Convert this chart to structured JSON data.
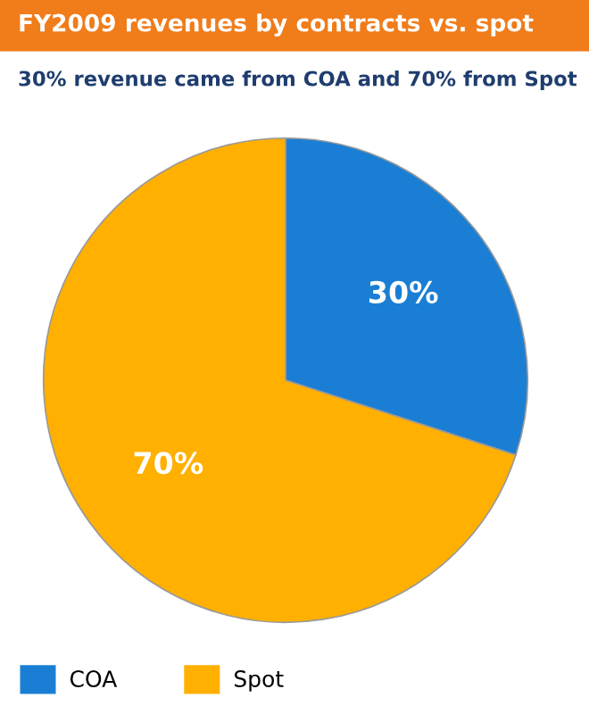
{
  "chart_data": {
    "type": "pie",
    "title": "FY2009 revenues by contracts vs. spot",
    "subtitle": "30% revenue came from COA and 70% from Spot",
    "categories": [
      "COA",
      "Spot"
    ],
    "values": [
      30,
      70
    ],
    "colors": [
      "#1a7fd4",
      "#ffb000"
    ],
    "value_labels": [
      "30%",
      "70%"
    ],
    "legend": "bottom left"
  }
}
